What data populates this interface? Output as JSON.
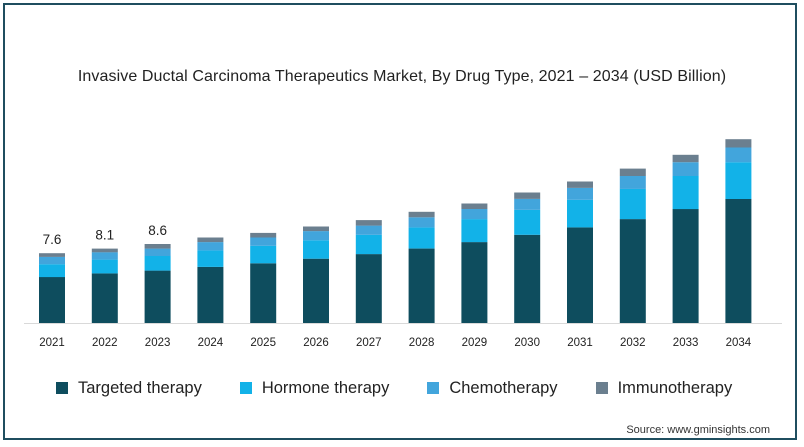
{
  "chart_data": {
    "type": "bar",
    "stacked": true,
    "title": "Invasive Ductal Carcinoma Therapeutics Market, By Drug Type, 2021 – 2034 (USD Billion)",
    "xlabel": "",
    "ylabel": "",
    "ylim": [
      0,
      21
    ],
    "grid": false,
    "legend_position": "bottom",
    "categories": [
      "2021",
      "2022",
      "2023",
      "2024",
      "2025",
      "2026",
      "2027",
      "2028",
      "2029",
      "2030",
      "2031",
      "2032",
      "2033",
      "2034"
    ],
    "series": [
      {
        "name": "Targeted therapy",
        "color": "#0e4d5e",
        "values": [
          5.0,
          5.4,
          5.7,
          6.1,
          6.5,
          7.0,
          7.5,
          8.1,
          8.8,
          9.6,
          10.4,
          11.3,
          12.4,
          13.5
        ]
      },
      {
        "name": "Hormone therapy",
        "color": "#12b2e8",
        "values": [
          1.4,
          1.5,
          1.6,
          1.8,
          1.9,
          2.0,
          2.1,
          2.3,
          2.5,
          2.7,
          3.0,
          3.3,
          3.6,
          4.0
        ]
      },
      {
        "name": "Chemotherapy",
        "color": "#42a5dc",
        "values": [
          0.8,
          0.8,
          0.8,
          0.9,
          0.9,
          1.0,
          1.0,
          1.1,
          1.1,
          1.2,
          1.3,
          1.4,
          1.5,
          1.6
        ]
      },
      {
        "name": "Immunotherapy",
        "color": "#6b7f8f",
        "values": [
          0.4,
          0.4,
          0.5,
          0.5,
          0.5,
          0.5,
          0.6,
          0.6,
          0.6,
          0.7,
          0.7,
          0.8,
          0.8,
          0.9
        ]
      }
    ],
    "annotations": [
      {
        "category": "2021",
        "label": "7.6"
      },
      {
        "category": "2022",
        "label": "8.1"
      },
      {
        "category": "2023",
        "label": "8.6"
      }
    ]
  },
  "source_text": "Source: www.gminsights.com"
}
